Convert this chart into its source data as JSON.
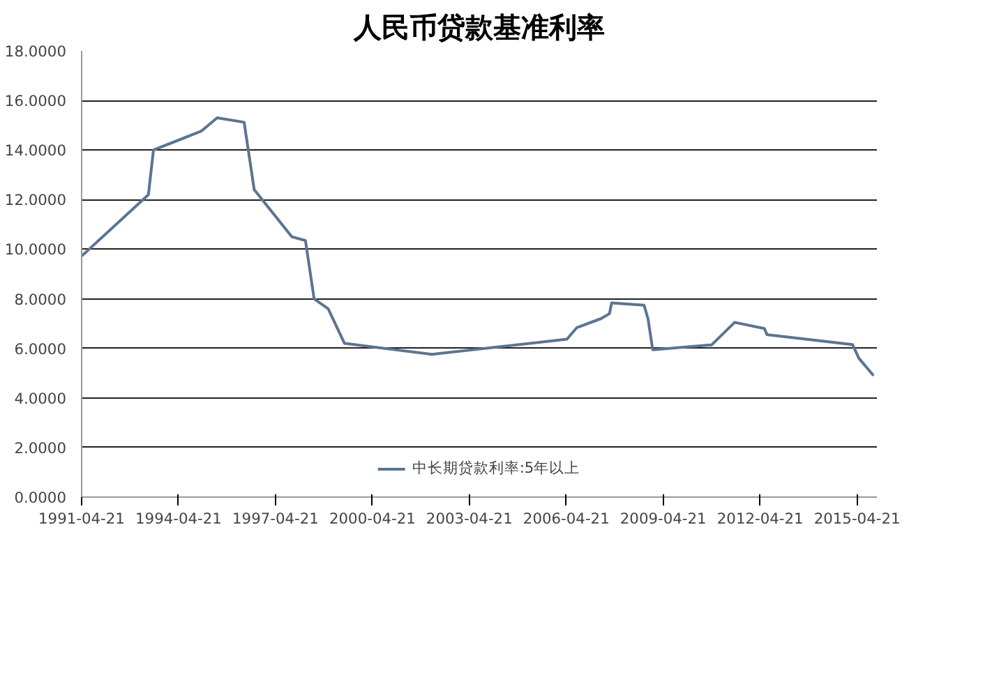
{
  "chart_data": {
    "type": "line",
    "title": "人民币贷款基准利率",
    "x": [
      "1991-04-21",
      "1993-05-15",
      "1993-07-11",
      "1995-01-01",
      "1995-07-01",
      "1996-05-01",
      "1996-08-23",
      "1997-10-23",
      "1998-03-25",
      "1998-07-01",
      "1998-12-07",
      "1999-06-10",
      "2002-02-21",
      "2006-04-28",
      "2006-08-19",
      "2007-05-19",
      "2007-08-22",
      "2007-09-15",
      "2008-09-16",
      "2008-10-30",
      "2008-12-23",
      "2010-10-20",
      "2011-07-07",
      "2012-06-08",
      "2012-07-06",
      "2015-03-01",
      "2015-05-11",
      "2015-10-24"
    ],
    "series": [
      {
        "name": "中长期贷款利率:5年以上",
        "color": "#5b7490",
        "values": [
          9.72,
          12.2,
          14.0,
          14.76,
          15.3,
          15.12,
          12.4,
          10.5,
          10.35,
          8.0,
          7.6,
          6.2,
          5.76,
          6.37,
          6.84,
          7.2,
          7.4,
          7.83,
          7.74,
          7.2,
          5.94,
          6.14,
          7.05,
          6.8,
          6.55,
          6.15,
          5.6,
          4.9
        ]
      }
    ],
    "xlim": [
      "1991-04-21",
      "2015-12-01"
    ],
    "xticks": [
      "1991-04-21",
      "1994-04-21",
      "1997-04-21",
      "2000-04-21",
      "2003-04-21",
      "2006-04-21",
      "2009-04-21",
      "2012-04-21",
      "2015-04-21"
    ],
    "ylim": [
      0,
      18
    ],
    "yticks": [
      {
        "value": 0,
        "label": "0.0000"
      },
      {
        "value": 2,
        "label": "2.0000"
      },
      {
        "value": 4,
        "label": "4.0000"
      },
      {
        "value": 6,
        "label": "6.0000"
      },
      {
        "value": 8,
        "label": "8.0000"
      },
      {
        "value": 10,
        "label": "10.0000"
      },
      {
        "value": 12,
        "label": "12.0000"
      },
      {
        "value": 14,
        "label": "14.0000"
      },
      {
        "value": 16,
        "label": "16.0000"
      },
      {
        "value": 18,
        "label": "18.0000"
      }
    ],
    "grid": "y",
    "legend": "bottom"
  }
}
